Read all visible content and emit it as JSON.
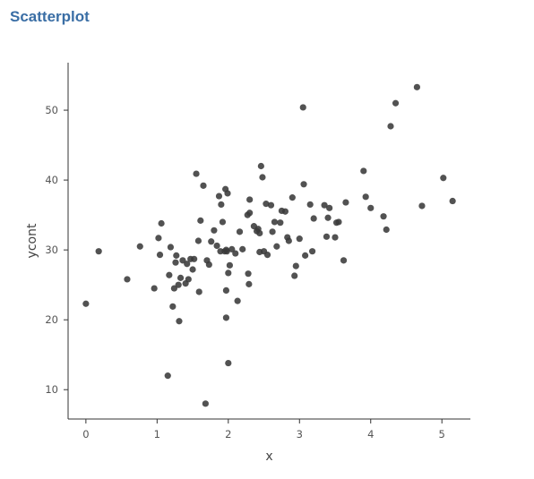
{
  "header": {
    "title": "Scatterplot"
  },
  "chart_data": {
    "type": "scatter",
    "xlabel": "x",
    "ylabel": "ycont",
    "xlim": [
      -0.25,
      5.4
    ],
    "ylim": [
      5.8,
      56.8
    ],
    "xticks": [
      0,
      1,
      2,
      3,
      4,
      5
    ],
    "yticks": [
      10,
      20,
      30,
      40,
      50
    ],
    "grid": false,
    "legend": "none",
    "point_color": "#3a3a3a",
    "x": [
      0.0,
      0.18,
      0.58,
      0.76,
      0.96,
      1.02,
      1.04,
      1.06,
      1.15,
      1.17,
      1.19,
      1.22,
      1.24,
      1.26,
      1.27,
      1.3,
      1.31,
      1.33,
      1.36,
      1.4,
      1.42,
      1.44,
      1.47,
      1.5,
      1.52,
      1.55,
      1.58,
      1.59,
      1.61,
      1.65,
      1.7,
      1.73,
      1.76,
      1.8,
      1.84,
      1.87,
      1.89,
      1.9,
      1.92,
      1.95,
      1.96,
      1.97,
      1.98,
      1.99,
      2.0,
      2.02,
      2.05,
      2.1,
      2.13,
      2.16,
      2.2,
      2.27,
      2.28,
      2.29,
      2.3,
      2.3,
      2.36,
      2.4,
      2.42,
      2.44,
      2.46,
      2.48,
      2.5,
      2.53,
      2.55,
      2.6,
      2.62,
      2.65,
      2.68,
      2.73,
      2.75,
      2.8,
      2.83,
      2.85,
      2.9,
      2.93,
      2.95,
      3.0,
      3.05,
      3.06,
      3.08,
      3.15,
      3.18,
      3.2,
      3.35,
      3.38,
      3.4,
      3.42,
      3.5,
      3.52,
      3.55,
      3.62,
      3.65,
      3.9,
      3.93,
      4.0,
      4.18,
      4.22,
      4.28,
      4.35,
      4.65,
      4.72,
      5.02,
      5.15,
      1.68,
      1.97,
      2.0,
      1.97,
      2.44
    ],
    "y": [
      22.3,
      29.8,
      25.8,
      30.5,
      24.5,
      31.7,
      29.3,
      33.8,
      12.0,
      26.4,
      30.4,
      21.9,
      24.5,
      28.2,
      29.2,
      25.0,
      19.8,
      26.0,
      28.5,
      25.2,
      28.0,
      25.8,
      28.7,
      27.2,
      28.7,
      40.9,
      31.3,
      24.0,
      34.2,
      39.2,
      28.5,
      27.9,
      31.2,
      32.8,
      30.6,
      37.7,
      29.8,
      36.5,
      34.0,
      29.8,
      38.7,
      30.0,
      29.8,
      38.1,
      26.7,
      27.8,
      30.1,
      29.5,
      22.7,
      32.6,
      30.1,
      35.0,
      26.6,
      25.1,
      35.3,
      37.2,
      33.4,
      32.7,
      33.0,
      32.4,
      42.0,
      40.4,
      29.8,
      36.6,
      29.3,
      36.4,
      32.6,
      34.0,
      30.5,
      33.9,
      35.6,
      35.5,
      31.8,
      31.3,
      37.5,
      26.3,
      27.7,
      31.6,
      50.4,
      39.4,
      29.2,
      36.5,
      29.8,
      34.5,
      36.4,
      31.9,
      34.6,
      36.0,
      31.8,
      33.9,
      34.0,
      28.5,
      36.8,
      41.3,
      37.6,
      36.0,
      34.8,
      32.9,
      47.7,
      51.0,
      53.3,
      36.3,
      40.3,
      37.0,
      8.0,
      24.2,
      13.8,
      20.3,
      29.7
    ]
  }
}
